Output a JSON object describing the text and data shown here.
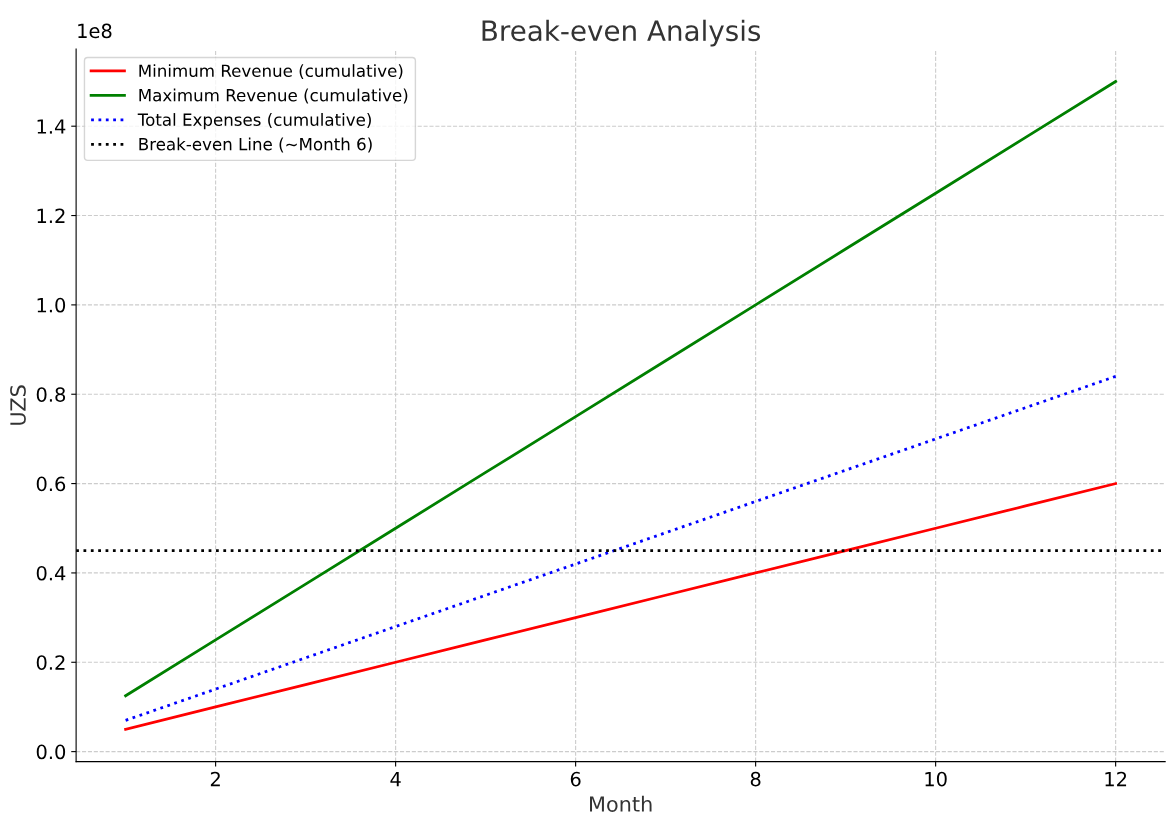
{
  "chart_data": {
    "type": "line",
    "title": "Break-even Analysis",
    "xlabel": "Month",
    "ylabel": "UZS",
    "x": [
      1,
      2,
      3,
      4,
      5,
      6,
      7,
      8,
      9,
      10,
      11,
      12
    ],
    "series": [
      {
        "name": "Minimum Revenue (cumulative)",
        "color": "#ff0000",
        "line_style": "solid",
        "values": [
          0.05,
          0.1,
          0.15,
          0.2,
          0.25,
          0.3,
          0.35,
          0.4,
          0.45,
          0.5,
          0.55,
          0.6
        ]
      },
      {
        "name": "Maximum Revenue (cumulative)",
        "color": "#008000",
        "line_style": "solid",
        "values": [
          0.125,
          0.25,
          0.375,
          0.5,
          0.625,
          0.75,
          0.875,
          1.0,
          1.125,
          1.25,
          1.375,
          1.5
        ]
      },
      {
        "name": "Total Expenses (cumulative)",
        "color": "#0000ff",
        "line_style": "dotted",
        "values": [
          0.07,
          0.14,
          0.21,
          0.28,
          0.35,
          0.42,
          0.49,
          0.56,
          0.63,
          0.7,
          0.77,
          0.84
        ]
      }
    ],
    "ref_lines": [
      {
        "axis": "y",
        "value": 0.45,
        "label": "Break-even Line (~Month 6)",
        "color": "#000000",
        "line_style": "dotted"
      }
    ],
    "annotations": [
      "1e8"
    ],
    "xlim": [
      0.45,
      12.55
    ],
    "xticks": [
      2,
      4,
      6,
      8,
      10,
      12
    ],
    "ylim": [
      -0.0225,
      1.5725
    ],
    "yticks": [
      {
        "value": 0,
        "label": "0.0"
      },
      0.2,
      0.4,
      0.6,
      0.8,
      {
        "value": 1,
        "label": "1.0"
      },
      1.2,
      1.4
    ],
    "grid": true,
    "legend": "top left"
  }
}
